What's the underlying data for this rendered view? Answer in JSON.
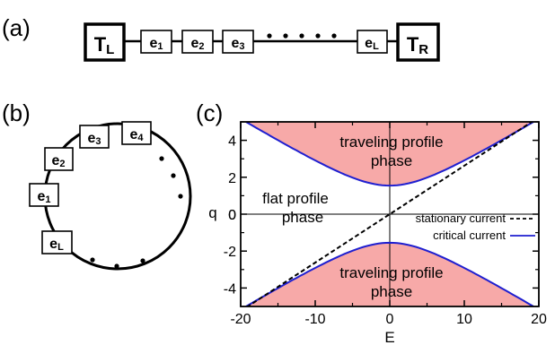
{
  "panel_a": {
    "label": "(a)",
    "left_reservoir": {
      "main": "T",
      "sub": "L"
    },
    "right_reservoir": {
      "main": "T",
      "sub": "R"
    },
    "chain": [
      {
        "main": "e",
        "sub": "1"
      },
      {
        "main": "e",
        "sub": "2"
      },
      {
        "main": "e",
        "sub": "3"
      },
      {
        "main": "e",
        "sub": "L"
      }
    ]
  },
  "panel_b": {
    "label": "(b)",
    "ring": [
      {
        "main": "e",
        "sub": "1"
      },
      {
        "main": "e",
        "sub": "2"
      },
      {
        "main": "e",
        "sub": "3"
      },
      {
        "main": "e",
        "sub": "4"
      },
      {
        "main": "e",
        "sub": "L"
      }
    ]
  },
  "panel_c": {
    "label": "(c)",
    "region_labels": {
      "traveling_top_1": "traveling profile",
      "traveling_top_2": "phase",
      "flat_1": "flat profile",
      "flat_2": "phase",
      "traveling_bottom_1": "traveling profile",
      "traveling_bottom_2": "phase"
    },
    "fill_color": "#f7a9a8",
    "critical_color": "#1f1fd0"
  },
  "chart_data": {
    "type": "line",
    "xlabel": "E",
    "ylabel": "q",
    "xlim": [
      -20,
      20
    ],
    "ylim": [
      -5,
      5
    ],
    "x_ticks": [
      "-20",
      "-10",
      "0",
      "10",
      "20"
    ],
    "y_ticks": [
      "4",
      "2",
      "0",
      "-2",
      "-4"
    ],
    "legend_position": "right",
    "series": [
      {
        "name": "stationary current",
        "style": "dashed",
        "color": "#000000",
        "x": [
          -20,
          20
        ],
        "y": [
          -5.25,
          5.25
        ]
      },
      {
        "name": "critical current",
        "style": "solid",
        "color": "#1f1fd0",
        "x": [
          -20,
          -16,
          -12,
          -8,
          -4,
          0,
          4,
          8,
          12,
          16,
          20
        ],
        "y": [
          5.2,
          4.3,
          3.45,
          2.6,
          1.9,
          1.55,
          1.9,
          2.6,
          3.45,
          4.3,
          5.2
        ],
        "mirrored": true
      }
    ]
  }
}
